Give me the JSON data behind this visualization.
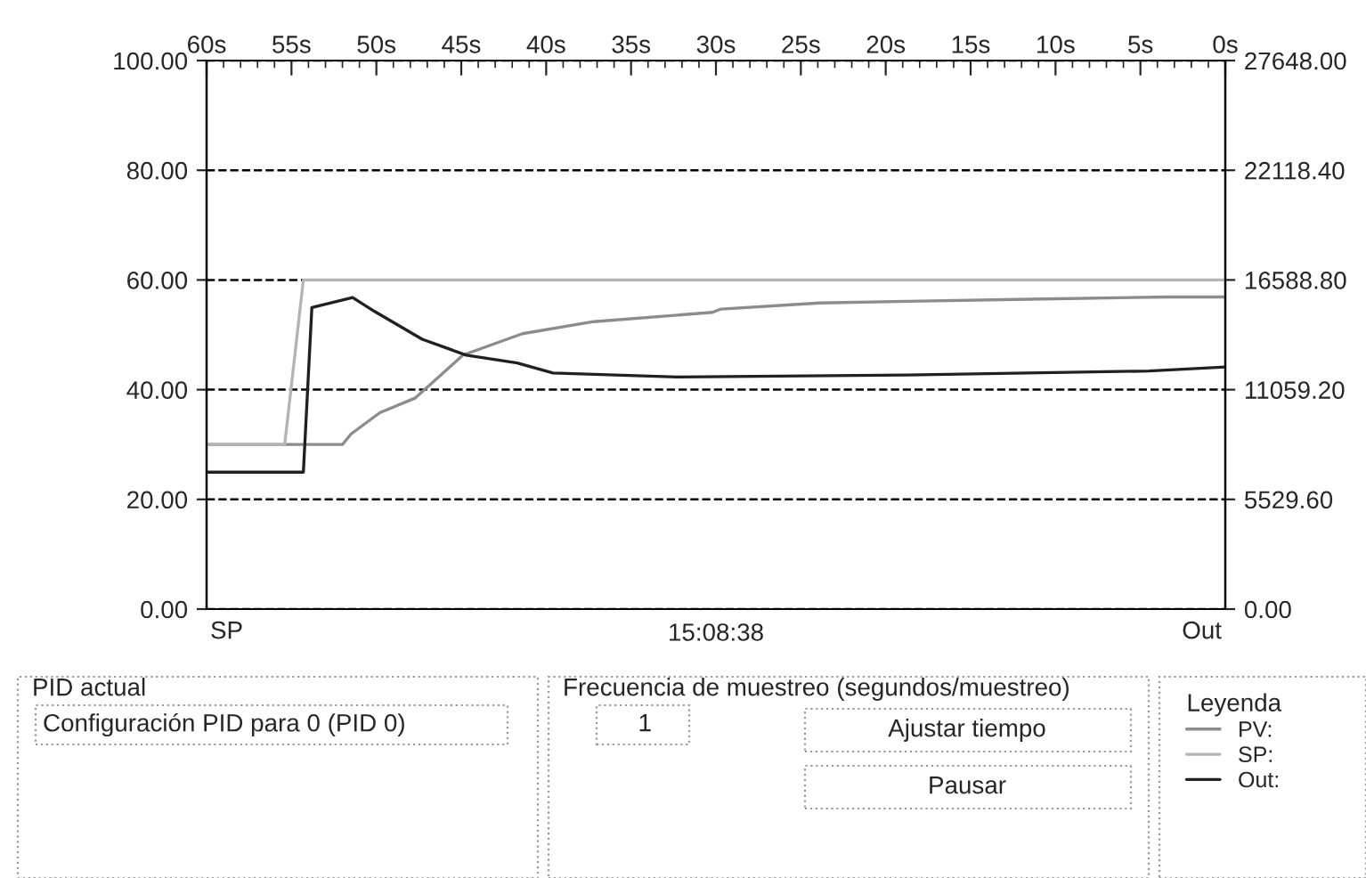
{
  "chart_data": {
    "type": "line",
    "xlabel": "15:08:38",
    "legend_title": "Leyenda",
    "series": [
      {
        "name": "PV:",
        "color": "#8c8c8c",
        "x": [
          60,
          52,
          51.5,
          49.8,
          47.7,
          44.9,
          41.4,
          37.2,
          30.2,
          29.7,
          23.9,
          18.7,
          11.5,
          3.4,
          0
        ],
        "values": [
          30,
          30,
          31.9,
          35.8,
          38.5,
          46.3,
          50.2,
          52.4,
          54.1,
          54.7,
          55.8,
          56.1,
          56.5,
          56.9,
          56.9
        ]
      },
      {
        "name": "SP:",
        "color": "#b4b4b4",
        "x": [
          60,
          55.4,
          54.3,
          0
        ],
        "values": [
          30,
          30,
          60,
          60
        ]
      },
      {
        "name": "Out:",
        "color": "#202020",
        "axis": "y2",
        "x": [
          60,
          54.3,
          53.8,
          51.4,
          50.1,
          47.3,
          44.7,
          41.7,
          39.6,
          32.3,
          18.7,
          4.5,
          0
        ],
        "values": [
          6900,
          6900,
          15200,
          15700,
          15000,
          13600,
          12800,
          12400,
          11900,
          11700,
          11800,
          12000,
          12200
        ]
      }
    ],
    "xlim": [
      60,
      0
    ],
    "xticks": [
      {
        "value": 60,
        "label": "60s"
      },
      {
        "value": 55,
        "label": "55s"
      },
      {
        "value": 50,
        "label": "50s"
      },
      {
        "value": 45,
        "label": "45s"
      },
      {
        "value": 40,
        "label": "40s"
      },
      {
        "value": 35,
        "label": "35s"
      },
      {
        "value": 30,
        "label": "30s"
      },
      {
        "value": 25,
        "label": "25s"
      },
      {
        "value": 20,
        "label": "20s"
      },
      {
        "value": 15,
        "label": "15s"
      },
      {
        "value": 10,
        "label": "10s"
      },
      {
        "value": 5,
        "label": "5s"
      },
      {
        "value": 0,
        "label": "0s"
      }
    ],
    "ylim": [
      0,
      100
    ],
    "yticks": [
      {
        "value": 0,
        "label": "0.00"
      },
      {
        "value": 20,
        "label": "20.00"
      },
      {
        "value": 40,
        "label": "40.00"
      },
      {
        "value": 60,
        "label": "60.00"
      },
      {
        "value": 80,
        "label": "80.00"
      },
      {
        "value": 100,
        "label": "100.00"
      }
    ],
    "y2lim": [
      0,
      27648
    ],
    "y2ticks": [
      {
        "value": 0,
        "label": "0.00"
      },
      {
        "value": 5529.6,
        "label": "5529.60"
      },
      {
        "value": 11059.2,
        "label": "11059.20"
      },
      {
        "value": 16588.8,
        "label": "16588.80"
      },
      {
        "value": 22118.4,
        "label": "22118.40"
      },
      {
        "value": 27648,
        "label": "27648.00"
      }
    ],
    "grid": "y",
    "legend": "bottom right",
    "line_style": "solid",
    "annotations": [
      "SP",
      "Out",
      "PID actual",
      "Configuración PID para 0 (PID 0)",
      "Frecuencia de muestreo (segundos/muestreo)",
      "1",
      "Ajustar tiempo",
      "Pausar"
    ]
  }
}
